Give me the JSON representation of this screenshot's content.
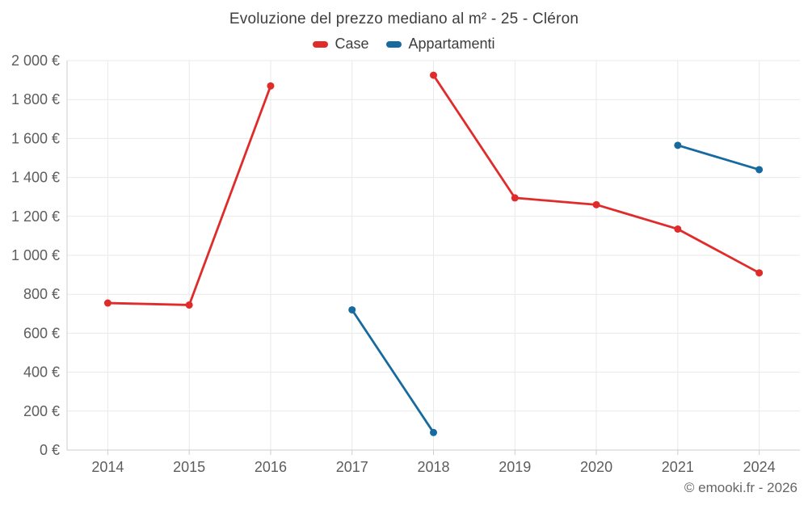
{
  "title": "Evoluzione del prezzo mediano al m² - 25 - Cléron",
  "legend": [
    {
      "label": "Case",
      "color": "#e02b2b"
    },
    {
      "label": "Appartamenti",
      "color": "#166a9e"
    }
  ],
  "footer": {
    "credit": "© emooki.fr - 2026"
  },
  "chart_data": {
    "type": "line",
    "title": "Evoluzione del prezzo mediano al m² - 25 - Cléron",
    "categories": [
      "2014",
      "2015",
      "2016",
      "2017",
      "2018",
      "2019",
      "2020",
      "2021",
      "2024"
    ],
    "series": [
      {
        "name": "Case",
        "color": "#e02b2b",
        "values": [
          755,
          745,
          1870,
          null,
          1925,
          1295,
          1260,
          1135,
          910
        ]
      },
      {
        "name": "Appartamenti",
        "color": "#166a9e",
        "values": [
          null,
          null,
          null,
          720,
          90,
          null,
          null,
          1565,
          1440
        ]
      }
    ],
    "xlabel": "",
    "ylabel": "",
    "ylim": [
      0,
      2000
    ],
    "y_tick_step": 200,
    "y_tick_labels": [
      "0 €",
      "200 €",
      "400 €",
      "600 €",
      "800 €",
      "1 000 €",
      "1 200 €",
      "1 400 €",
      "1 600 €",
      "1 800 €",
      "2 000 €"
    ],
    "grid": true,
    "legend_position": "top"
  },
  "colors": {
    "grid": "#e9e9e9",
    "axis": "#cccccc",
    "tick_text": "#5d5d5d",
    "title_text": "#3e3e3e",
    "credit_text": "#666666"
  }
}
